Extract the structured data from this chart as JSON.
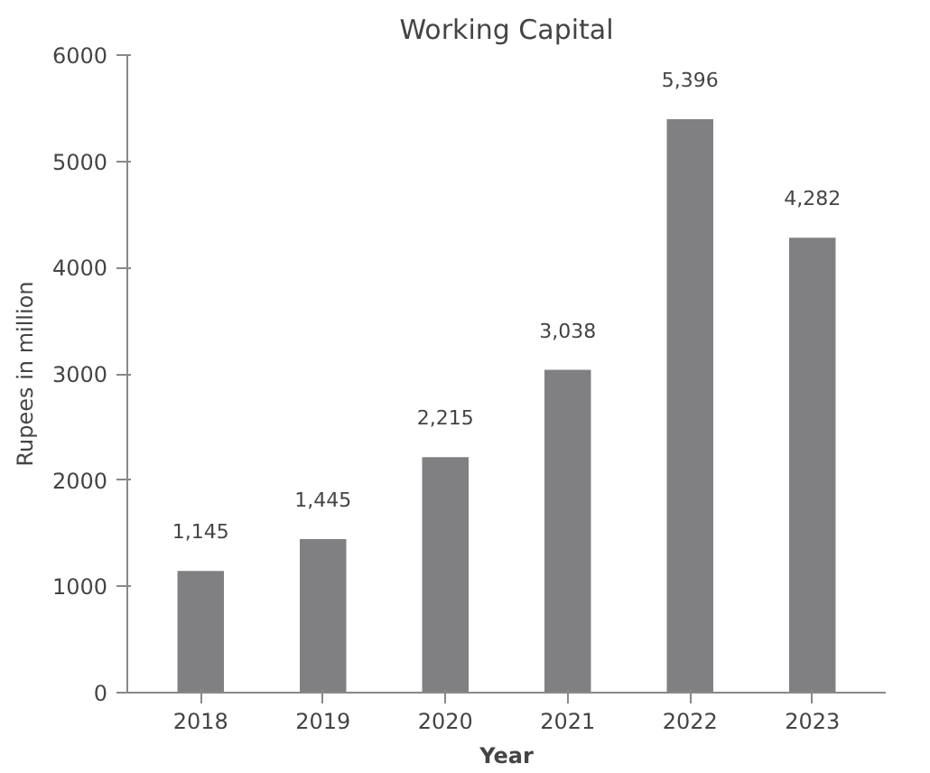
{
  "chart_data": {
    "type": "bar",
    "title": "Working Capital",
    "xlabel": "Year",
    "ylabel": "Rupees in million",
    "categories": [
      "2018",
      "2019",
      "2020",
      "2021",
      "2022",
      "2023"
    ],
    "values": [
      1145,
      1445,
      2215,
      3038,
      5396,
      4282
    ],
    "value_labels": [
      "1,145",
      "1,445",
      "2,215",
      "3,038",
      "5,396",
      "4,282"
    ],
    "color": "#808083",
    "ylim": [
      0,
      6000
    ],
    "yticks": [
      0,
      1000,
      2000,
      3000,
      4000,
      5000,
      6000
    ],
    "grid": false
  }
}
